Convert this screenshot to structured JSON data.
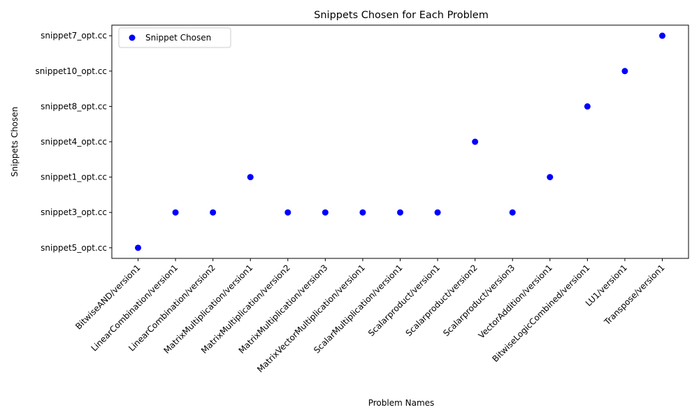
{
  "chart_data": {
    "type": "scatter",
    "title": "Snippets Chosen for Each Problem",
    "xlabel": "Problem Names",
    "ylabel": "Snippets Chosen",
    "categories": [
      "BitwiseAND/version1",
      "LinearCombination/version1",
      "LinearCombination/version2",
      "MatrixMultiplication/version1",
      "MatrixMultiplication/version2",
      "MatrixMultiplication/version3",
      "MatrixVectorMultiplication/version1",
      "ScalarMultiplication/version1",
      "Scalarproduct/version1",
      "Scalarproduct/version2",
      "Scalarproduct/version3",
      "VectorAddition/version1",
      "BitwiseLogicCombined/version1",
      "LU1/version1",
      "Transpose/version1"
    ],
    "y_categories": [
      "snippet5_opt.cc",
      "snippet3_opt.cc",
      "snippet1_opt.cc",
      "snippet4_opt.cc",
      "snippet8_opt.cc",
      "snippet10_opt.cc",
      "snippet7_opt.cc"
    ],
    "series": [
      {
        "name": "Snippet Chosen",
        "color": "#0000ff",
        "values": [
          "snippet5_opt.cc",
          "snippet3_opt.cc",
          "snippet3_opt.cc",
          "snippet1_opt.cc",
          "snippet3_opt.cc",
          "snippet3_opt.cc",
          "snippet3_opt.cc",
          "snippet3_opt.cc",
          "snippet3_opt.cc",
          "snippet4_opt.cc",
          "snippet3_opt.cc",
          "snippet1_opt.cc",
          "snippet8_opt.cc",
          "snippet10_opt.cc",
          "snippet7_opt.cc"
        ]
      }
    ],
    "grid": false,
    "legend_position": "upper-left"
  }
}
